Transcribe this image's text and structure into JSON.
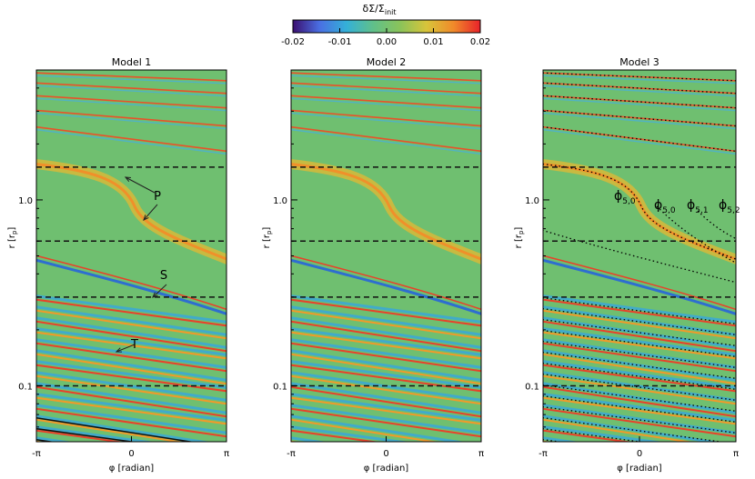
{
  "colorbar": {
    "label": "δΣ/Σ_init",
    "label_main": "δΣ/Σ",
    "label_sub": "init",
    "ticks": [
      "-0.02",
      "-0.01",
      "0.00",
      "0.01",
      "0.02"
    ],
    "range": [
      -0.02,
      0.02
    ],
    "colors": [
      "#3b0f70",
      "#4a6fe3",
      "#34b0d8",
      "#60c08a",
      "#8ac35a",
      "#d8c43a",
      "#f08a2a",
      "#e8222a"
    ]
  },
  "chart_data": [
    {
      "type": "heatmap",
      "title": "Model 1",
      "xlabel": "φ [radian]",
      "ylabel": "r [r_p]",
      "ylabel_main": "r [r",
      "ylabel_sub": "p",
      "ylabel_close": "]",
      "xticks": [
        "-π",
        "0",
        "π"
      ],
      "yticks": [
        "1.0",
        "0.1"
      ],
      "xlim": [
        -3.1416,
        3.1416
      ],
      "ylim": [
        0.05,
        5.0
      ],
      "yscale": "log",
      "dashed_r": [
        1.5,
        0.6,
        0.3,
        0.1
      ],
      "annotations": [
        "P",
        "S",
        "T"
      ]
    },
    {
      "type": "heatmap",
      "title": "Model 2",
      "xlabel": "φ [radian]",
      "ylabel": "r [r_p]",
      "ylabel_main": "r [r",
      "ylabel_sub": "p",
      "ylabel_close": "]",
      "xticks": [
        "-π",
        "0",
        "π"
      ],
      "yticks": [
        "1.0",
        "0.1"
      ],
      "xlim": [
        -3.1416,
        3.1416
      ],
      "ylim": [
        0.05,
        5.0
      ],
      "yscale": "log",
      "dashed_r": [
        1.5,
        0.6,
        0.3,
        0.1
      ]
    },
    {
      "type": "heatmap",
      "title": "Model 3",
      "xlabel": "φ [radian]",
      "ylabel": "r [r_p]",
      "ylabel_main": "r [r",
      "ylabel_sub": "p",
      "ylabel_close": "]",
      "xticks": [
        "-π",
        "0",
        "π"
      ],
      "yticks": [
        "1.0",
        "0.1"
      ],
      "xlim": [
        -3.1416,
        3.1416
      ],
      "ylim": [
        0.05,
        5.0
      ],
      "yscale": "log",
      "dashed_r": [
        1.5,
        0.6,
        0.3,
        0.1
      ],
      "phi_labels": [
        {
          "main": "ϕ",
          "sub": "5,0"
        },
        {
          "main": "ϕ",
          "sub": "5,0"
        },
        {
          "main": "ϕ",
          "sub": "5,1"
        },
        {
          "main": "ϕ",
          "sub": "5,2"
        }
      ]
    }
  ]
}
